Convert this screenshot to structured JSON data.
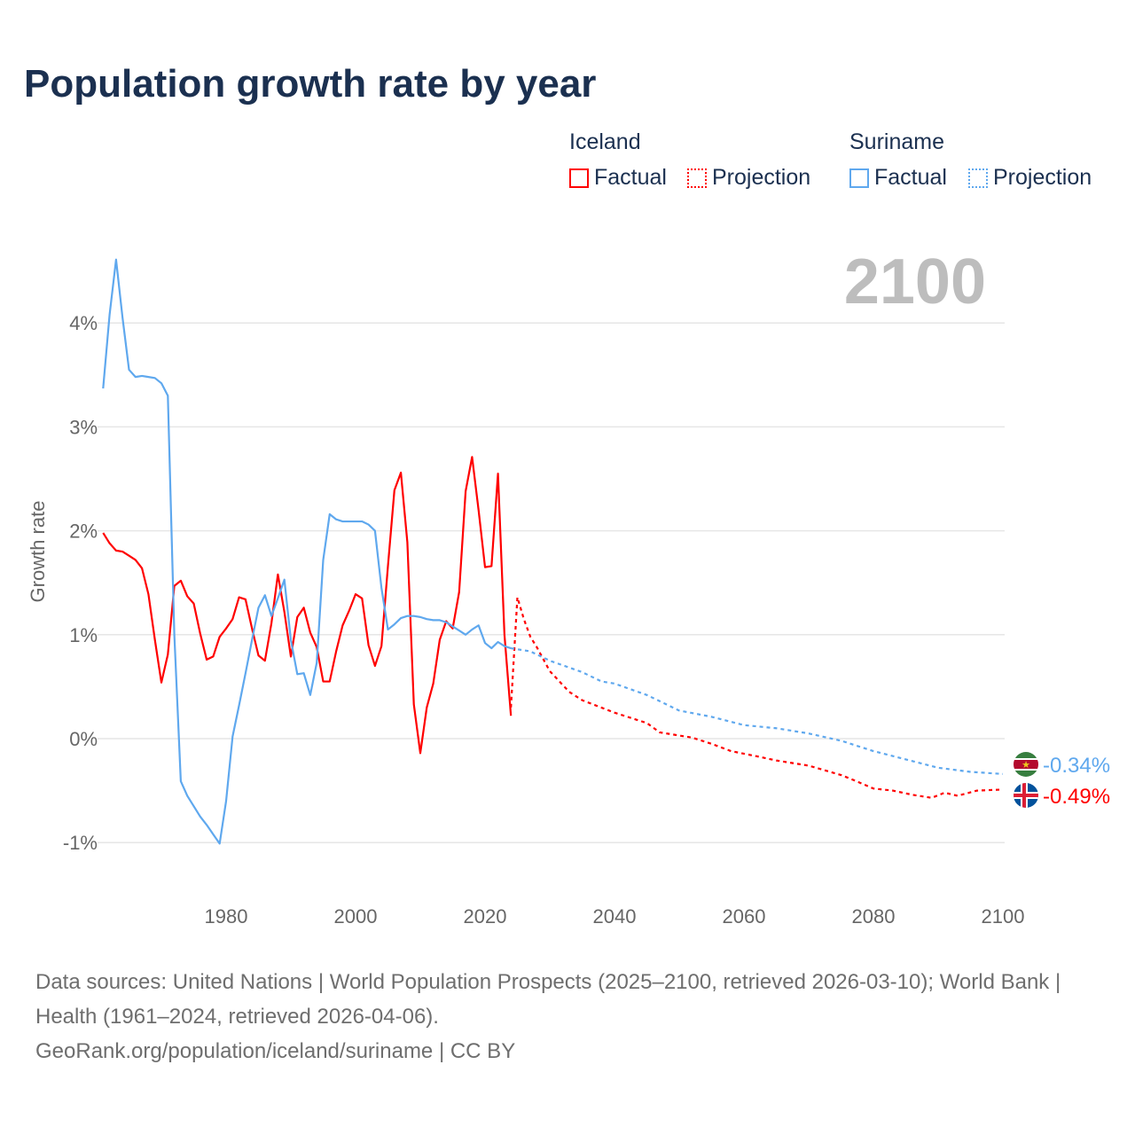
{
  "title": "Population growth rate by year",
  "legend": {
    "groups": [
      {
        "name": "Iceland",
        "factual": "Factual",
        "projection": "Projection",
        "color": "#ff0000"
      },
      {
        "name": "Suriname",
        "factual": "Factual",
        "projection": "Projection",
        "color": "#5fa8ee"
      }
    ]
  },
  "sources": {
    "line1": "Data sources: United Nations | World Population Prospects (2025–2100, retrieved 2026-03-10); World Bank | Health (1961–2024, retrieved 2026-04-06).",
    "line2": "GeoRank.org/population/iceland/suriname | CC BY"
  },
  "chart_data": {
    "type": "line",
    "title": "Population growth rate by year",
    "ylabel": "Growth rate",
    "xlim": [
      1961,
      2100
    ],
    "ylim": [
      -1.5,
      4.5
    ],
    "year_label": "2100",
    "xticks": [
      {
        "v": 1980,
        "label": "1980"
      },
      {
        "v": 2000,
        "label": "2000"
      },
      {
        "v": 2020,
        "label": "2020"
      },
      {
        "v": 2040,
        "label": "2040"
      },
      {
        "v": 2060,
        "label": "2060"
      },
      {
        "v": 2080,
        "label": "2080"
      },
      {
        "v": 2100,
        "label": "2100"
      }
    ],
    "yticks": [
      {
        "v": -1,
        "label": "-1%"
      },
      {
        "v": 0,
        "label": "0%"
      },
      {
        "v": 1,
        "label": "1%"
      },
      {
        "v": 2,
        "label": "2%"
      },
      {
        "v": 3,
        "label": "3%"
      },
      {
        "v": 4,
        "label": "4%"
      }
    ],
    "series": [
      {
        "name": "Iceland Factual",
        "color": "#ff0000",
        "dashed": false,
        "x_start": 1961,
        "values": [
          1.98,
          1.88,
          1.81,
          1.8,
          1.76,
          1.72,
          1.64,
          1.39,
          0.95,
          0.54,
          0.81,
          1.47,
          1.52,
          1.37,
          1.3,
          1.01,
          0.76,
          0.79,
          0.98,
          1.06,
          1.15,
          1.36,
          1.34,
          1.06,
          0.8,
          0.75,
          1.11,
          1.58,
          1.22,
          0.79,
          1.17,
          1.26,
          1.02,
          0.88,
          0.55,
          0.55,
          0.84,
          1.09,
          1.23,
          1.39,
          1.35,
          0.9,
          0.7,
          0.89,
          1.66,
          2.39,
          2.56,
          1.89,
          0.33,
          -0.14,
          0.3,
          0.53,
          0.95,
          1.13,
          1.06,
          1.41,
          2.38,
          2.71,
          2.2,
          1.65,
          1.66,
          2.55,
          1.0,
          0.22
        ]
      },
      {
        "name": "Iceland Projection",
        "color": "#ff0000",
        "dashed": true,
        "points": [
          [
            2024,
            0.3
          ],
          [
            2025,
            1.36
          ],
          [
            2026,
            1.15
          ],
          [
            2027,
            0.98
          ],
          [
            2028,
            0.88
          ],
          [
            2030,
            0.65
          ],
          [
            2033,
            0.45
          ],
          [
            2035,
            0.37
          ],
          [
            2040,
            0.25
          ],
          [
            2045,
            0.15
          ],
          [
            2047,
            0.06
          ],
          [
            2052,
            0.01
          ],
          [
            2055,
            -0.05
          ],
          [
            2058,
            -0.12
          ],
          [
            2062,
            -0.17
          ],
          [
            2065,
            -0.21
          ],
          [
            2070,
            -0.26
          ],
          [
            2075,
            -0.35
          ],
          [
            2077,
            -0.4
          ],
          [
            2080,
            -0.48
          ],
          [
            2083,
            -0.5
          ],
          [
            2086,
            -0.54
          ],
          [
            2089,
            -0.57
          ],
          [
            2091,
            -0.52
          ],
          [
            2093,
            -0.55
          ],
          [
            2096,
            -0.5
          ],
          [
            2100,
            -0.49
          ]
        ]
      },
      {
        "name": "Suriname Factual",
        "color": "#5fa8ee",
        "dashed": false,
        "x_start": 1961,
        "values": [
          3.37,
          4.08,
          4.61,
          4.05,
          3.55,
          3.48,
          3.49,
          3.48,
          3.47,
          3.42,
          3.3,
          1.0,
          -0.41,
          -0.55,
          -0.65,
          -0.75,
          -0.83,
          -0.92,
          -1.01,
          -0.6,
          0.02,
          0.32,
          0.63,
          0.95,
          1.26,
          1.38,
          1.18,
          1.35,
          1.53,
          0.95,
          0.62,
          0.63,
          0.42,
          0.73,
          1.72,
          2.16,
          2.11,
          2.09,
          2.09,
          2.09,
          2.09,
          2.06,
          2.0,
          1.45,
          1.05,
          1.1,
          1.16,
          1.18,
          1.18,
          1.17,
          1.15,
          1.14,
          1.14,
          1.12,
          1.08,
          1.04,
          1.0,
          1.05,
          1.09,
          0.92,
          0.87,
          0.93,
          0.89,
          0.87
        ]
      },
      {
        "name": "Suriname Projection",
        "color": "#5fa8ee",
        "dashed": true,
        "points": [
          [
            2024,
            0.87
          ],
          [
            2027,
            0.84
          ],
          [
            2030,
            0.75
          ],
          [
            2035,
            0.64
          ],
          [
            2038,
            0.55
          ],
          [
            2040,
            0.53
          ],
          [
            2045,
            0.42
          ],
          [
            2050,
            0.27
          ],
          [
            2055,
            0.21
          ],
          [
            2060,
            0.13
          ],
          [
            2065,
            0.1
          ],
          [
            2070,
            0.05
          ],
          [
            2075,
            -0.02
          ],
          [
            2080,
            -0.12
          ],
          [
            2085,
            -0.2
          ],
          [
            2090,
            -0.28
          ],
          [
            2095,
            -0.32
          ],
          [
            2100,
            -0.34
          ]
        ]
      }
    ],
    "end_labels": [
      {
        "country": "Suriname",
        "value": "-0.34%",
        "color": "#5fa8ee"
      },
      {
        "country": "Iceland",
        "value": "-0.49%",
        "color": "#ff0000"
      }
    ]
  }
}
